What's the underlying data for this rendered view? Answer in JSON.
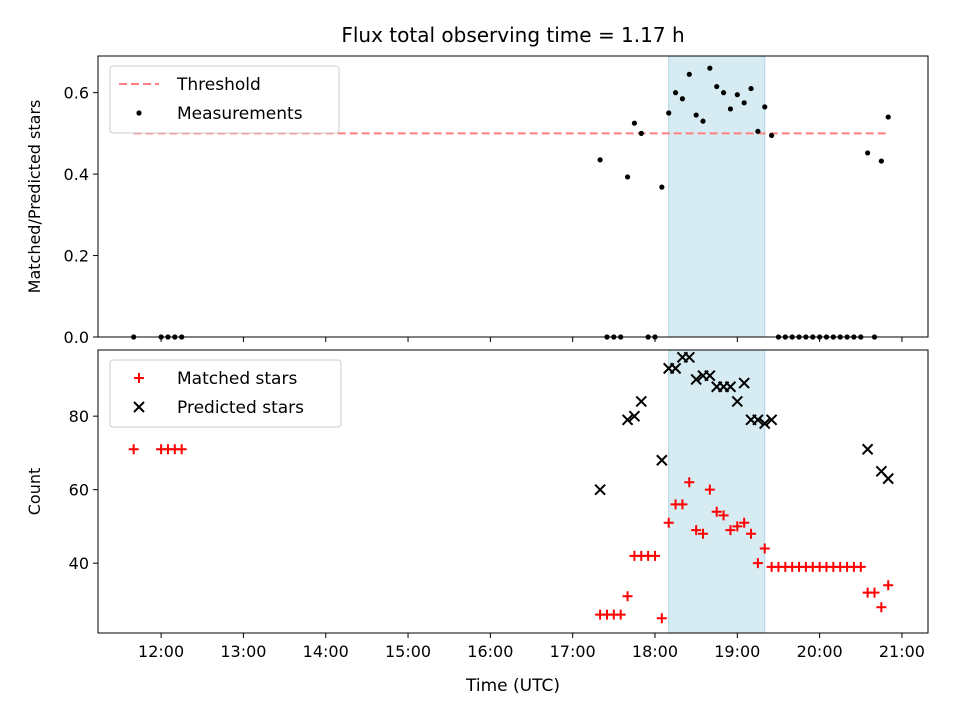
{
  "figure": {
    "title": "Flux total observing time = 1.17 h",
    "xlabel": "Time (UTC)",
    "x_ticks": [
      "12:00",
      "13:00",
      "14:00",
      "15:00",
      "16:00",
      "17:00",
      "18:00",
      "19:00",
      "20:00",
      "21:00"
    ],
    "shaded_span": {
      "start": "18:10",
      "end": "19:20",
      "color": "#add8e6"
    }
  },
  "chart_data": [
    {
      "type": "scatter",
      "ylabel": "Matched/Predicted stars",
      "xlim": [
        "11:14",
        "21:19"
      ],
      "ylim": [
        0,
        0.69
      ],
      "yticks": [
        "0.0",
        "0.2",
        "0.4",
        "0.6"
      ],
      "legend": {
        "position": "upper-left",
        "entries": [
          "Threshold",
          "Measurements"
        ]
      },
      "series": [
        {
          "name": "Threshold",
          "kind": "dashed-line",
          "color": "#ff7f7f",
          "points": [
            {
              "x": "11:40",
              "y": 0.5
            },
            {
              "x": "20:50",
              "y": 0.5
            }
          ]
        },
        {
          "name": "Measurements",
          "kind": "dot",
          "color": "#000000",
          "points": [
            {
              "x": "11:40",
              "y": 0
            },
            {
              "x": "12:00",
              "y": 0
            },
            {
              "x": "12:05",
              "y": 0
            },
            {
              "x": "12:10",
              "y": 0
            },
            {
              "x": "12:15",
              "y": 0
            },
            {
              "x": "17:20",
              "y": 0.435
            },
            {
              "x": "17:25",
              "y": 0
            },
            {
              "x": "17:30",
              "y": 0
            },
            {
              "x": "17:35",
              "y": 0
            },
            {
              "x": "17:40",
              "y": 0.393
            },
            {
              "x": "17:45",
              "y": 0.525
            },
            {
              "x": "17:50",
              "y": 0.5
            },
            {
              "x": "17:55",
              "y": 0
            },
            {
              "x": "18:00",
              "y": 0
            },
            {
              "x": "18:05",
              "y": 0.368
            },
            {
              "x": "18:10",
              "y": 0.55
            },
            {
              "x": "18:15",
              "y": 0.6
            },
            {
              "x": "18:20",
              "y": 0.585
            },
            {
              "x": "18:25",
              "y": 0.645
            },
            {
              "x": "18:30",
              "y": 0.545
            },
            {
              "x": "18:35",
              "y": 0.53
            },
            {
              "x": "18:40",
              "y": 0.66
            },
            {
              "x": "18:45",
              "y": 0.615
            },
            {
              "x": "18:50",
              "y": 0.6
            },
            {
              "x": "18:55",
              "y": 0.56
            },
            {
              "x": "19:00",
              "y": 0.595
            },
            {
              "x": "19:05",
              "y": 0.575
            },
            {
              "x": "19:10",
              "y": 0.61
            },
            {
              "x": "19:15",
              "y": 0.505
            },
            {
              "x": "19:20",
              "y": 0.565
            },
            {
              "x": "19:25",
              "y": 0.495
            },
            {
              "x": "19:30",
              "y": 0
            },
            {
              "x": "19:35",
              "y": 0
            },
            {
              "x": "19:40",
              "y": 0
            },
            {
              "x": "19:45",
              "y": 0
            },
            {
              "x": "19:50",
              "y": 0
            },
            {
              "x": "19:55",
              "y": 0
            },
            {
              "x": "20:00",
              "y": 0
            },
            {
              "x": "20:05",
              "y": 0
            },
            {
              "x": "20:10",
              "y": 0
            },
            {
              "x": "20:15",
              "y": 0
            },
            {
              "x": "20:20",
              "y": 0
            },
            {
              "x": "20:25",
              "y": 0
            },
            {
              "x": "20:30",
              "y": 0
            },
            {
              "x": "20:35",
              "y": 0.452
            },
            {
              "x": "20:40",
              "y": 0
            },
            {
              "x": "20:45",
              "y": 0.432
            },
            {
              "x": "20:50",
              "y": 0.54
            }
          ]
        }
      ]
    },
    {
      "type": "scatter",
      "ylabel": "Count",
      "xlim": [
        "11:14",
        "21:19"
      ],
      "ylim": [
        21,
        98
      ],
      "yticks": [
        "40",
        "60",
        "80"
      ],
      "legend": {
        "position": "upper-left",
        "entries": [
          "Matched stars",
          "Predicted stars"
        ]
      },
      "series": [
        {
          "name": "Matched stars",
          "kind": "plus",
          "color": "#ff0000",
          "points": [
            {
              "x": "11:40",
              "y": 71
            },
            {
              "x": "12:00",
              "y": 71
            },
            {
              "x": "12:05",
              "y": 71
            },
            {
              "x": "12:10",
              "y": 71
            },
            {
              "x": "12:15",
              "y": 71
            },
            {
              "x": "17:20",
              "y": 26
            },
            {
              "x": "17:25",
              "y": 26
            },
            {
              "x": "17:30",
              "y": 26
            },
            {
              "x": "17:35",
              "y": 26
            },
            {
              "x": "17:40",
              "y": 31
            },
            {
              "x": "17:45",
              "y": 42
            },
            {
              "x": "17:50",
              "y": 42
            },
            {
              "x": "17:55",
              "y": 42
            },
            {
              "x": "18:00",
              "y": 42
            },
            {
              "x": "18:05",
              "y": 25
            },
            {
              "x": "18:10",
              "y": 51
            },
            {
              "x": "18:15",
              "y": 56
            },
            {
              "x": "18:20",
              "y": 56
            },
            {
              "x": "18:25",
              "y": 62
            },
            {
              "x": "18:30",
              "y": 49
            },
            {
              "x": "18:35",
              "y": 48
            },
            {
              "x": "18:40",
              "y": 60
            },
            {
              "x": "18:45",
              "y": 54
            },
            {
              "x": "18:50",
              "y": 53
            },
            {
              "x": "18:55",
              "y": 49
            },
            {
              "x": "19:00",
              "y": 50
            },
            {
              "x": "19:05",
              "y": 51
            },
            {
              "x": "19:10",
              "y": 48
            },
            {
              "x": "19:15",
              "y": 40
            },
            {
              "x": "19:20",
              "y": 44
            },
            {
              "x": "19:25",
              "y": 39
            },
            {
              "x": "19:30",
              "y": 39
            },
            {
              "x": "19:35",
              "y": 39
            },
            {
              "x": "19:40",
              "y": 39
            },
            {
              "x": "19:45",
              "y": 39
            },
            {
              "x": "19:50",
              "y": 39
            },
            {
              "x": "19:55",
              "y": 39
            },
            {
              "x": "20:00",
              "y": 39
            },
            {
              "x": "20:05",
              "y": 39
            },
            {
              "x": "20:10",
              "y": 39
            },
            {
              "x": "20:15",
              "y": 39
            },
            {
              "x": "20:20",
              "y": 39
            },
            {
              "x": "20:25",
              "y": 39
            },
            {
              "x": "20:30",
              "y": 39
            },
            {
              "x": "20:35",
              "y": 32
            },
            {
              "x": "20:40",
              "y": 32
            },
            {
              "x": "20:45",
              "y": 28
            },
            {
              "x": "20:50",
              "y": 34
            }
          ]
        },
        {
          "name": "Predicted stars",
          "kind": "x",
          "color": "#000000",
          "points": [
            {
              "x": "17:20",
              "y": 60
            },
            {
              "x": "17:40",
              "y": 79
            },
            {
              "x": "17:45",
              "y": 80
            },
            {
              "x": "17:50",
              "y": 84
            },
            {
              "x": "18:05",
              "y": 68
            },
            {
              "x": "18:10",
              "y": 93
            },
            {
              "x": "18:15",
              "y": 93
            },
            {
              "x": "18:20",
              "y": 96
            },
            {
              "x": "18:25",
              "y": 96
            },
            {
              "x": "18:30",
              "y": 90
            },
            {
              "x": "18:35",
              "y": 91
            },
            {
              "x": "18:40",
              "y": 91
            },
            {
              "x": "18:45",
              "y": 88
            },
            {
              "x": "18:50",
              "y": 88
            },
            {
              "x": "18:55",
              "y": 88
            },
            {
              "x": "19:00",
              "y": 84
            },
            {
              "x": "19:05",
              "y": 89
            },
            {
              "x": "19:10",
              "y": 79
            },
            {
              "x": "19:15",
              "y": 79
            },
            {
              "x": "19:20",
              "y": 78
            },
            {
              "x": "19:25",
              "y": 79
            },
            {
              "x": "20:35",
              "y": 71
            },
            {
              "x": "20:45",
              "y": 65
            },
            {
              "x": "20:50",
              "y": 63
            }
          ]
        }
      ]
    }
  ]
}
